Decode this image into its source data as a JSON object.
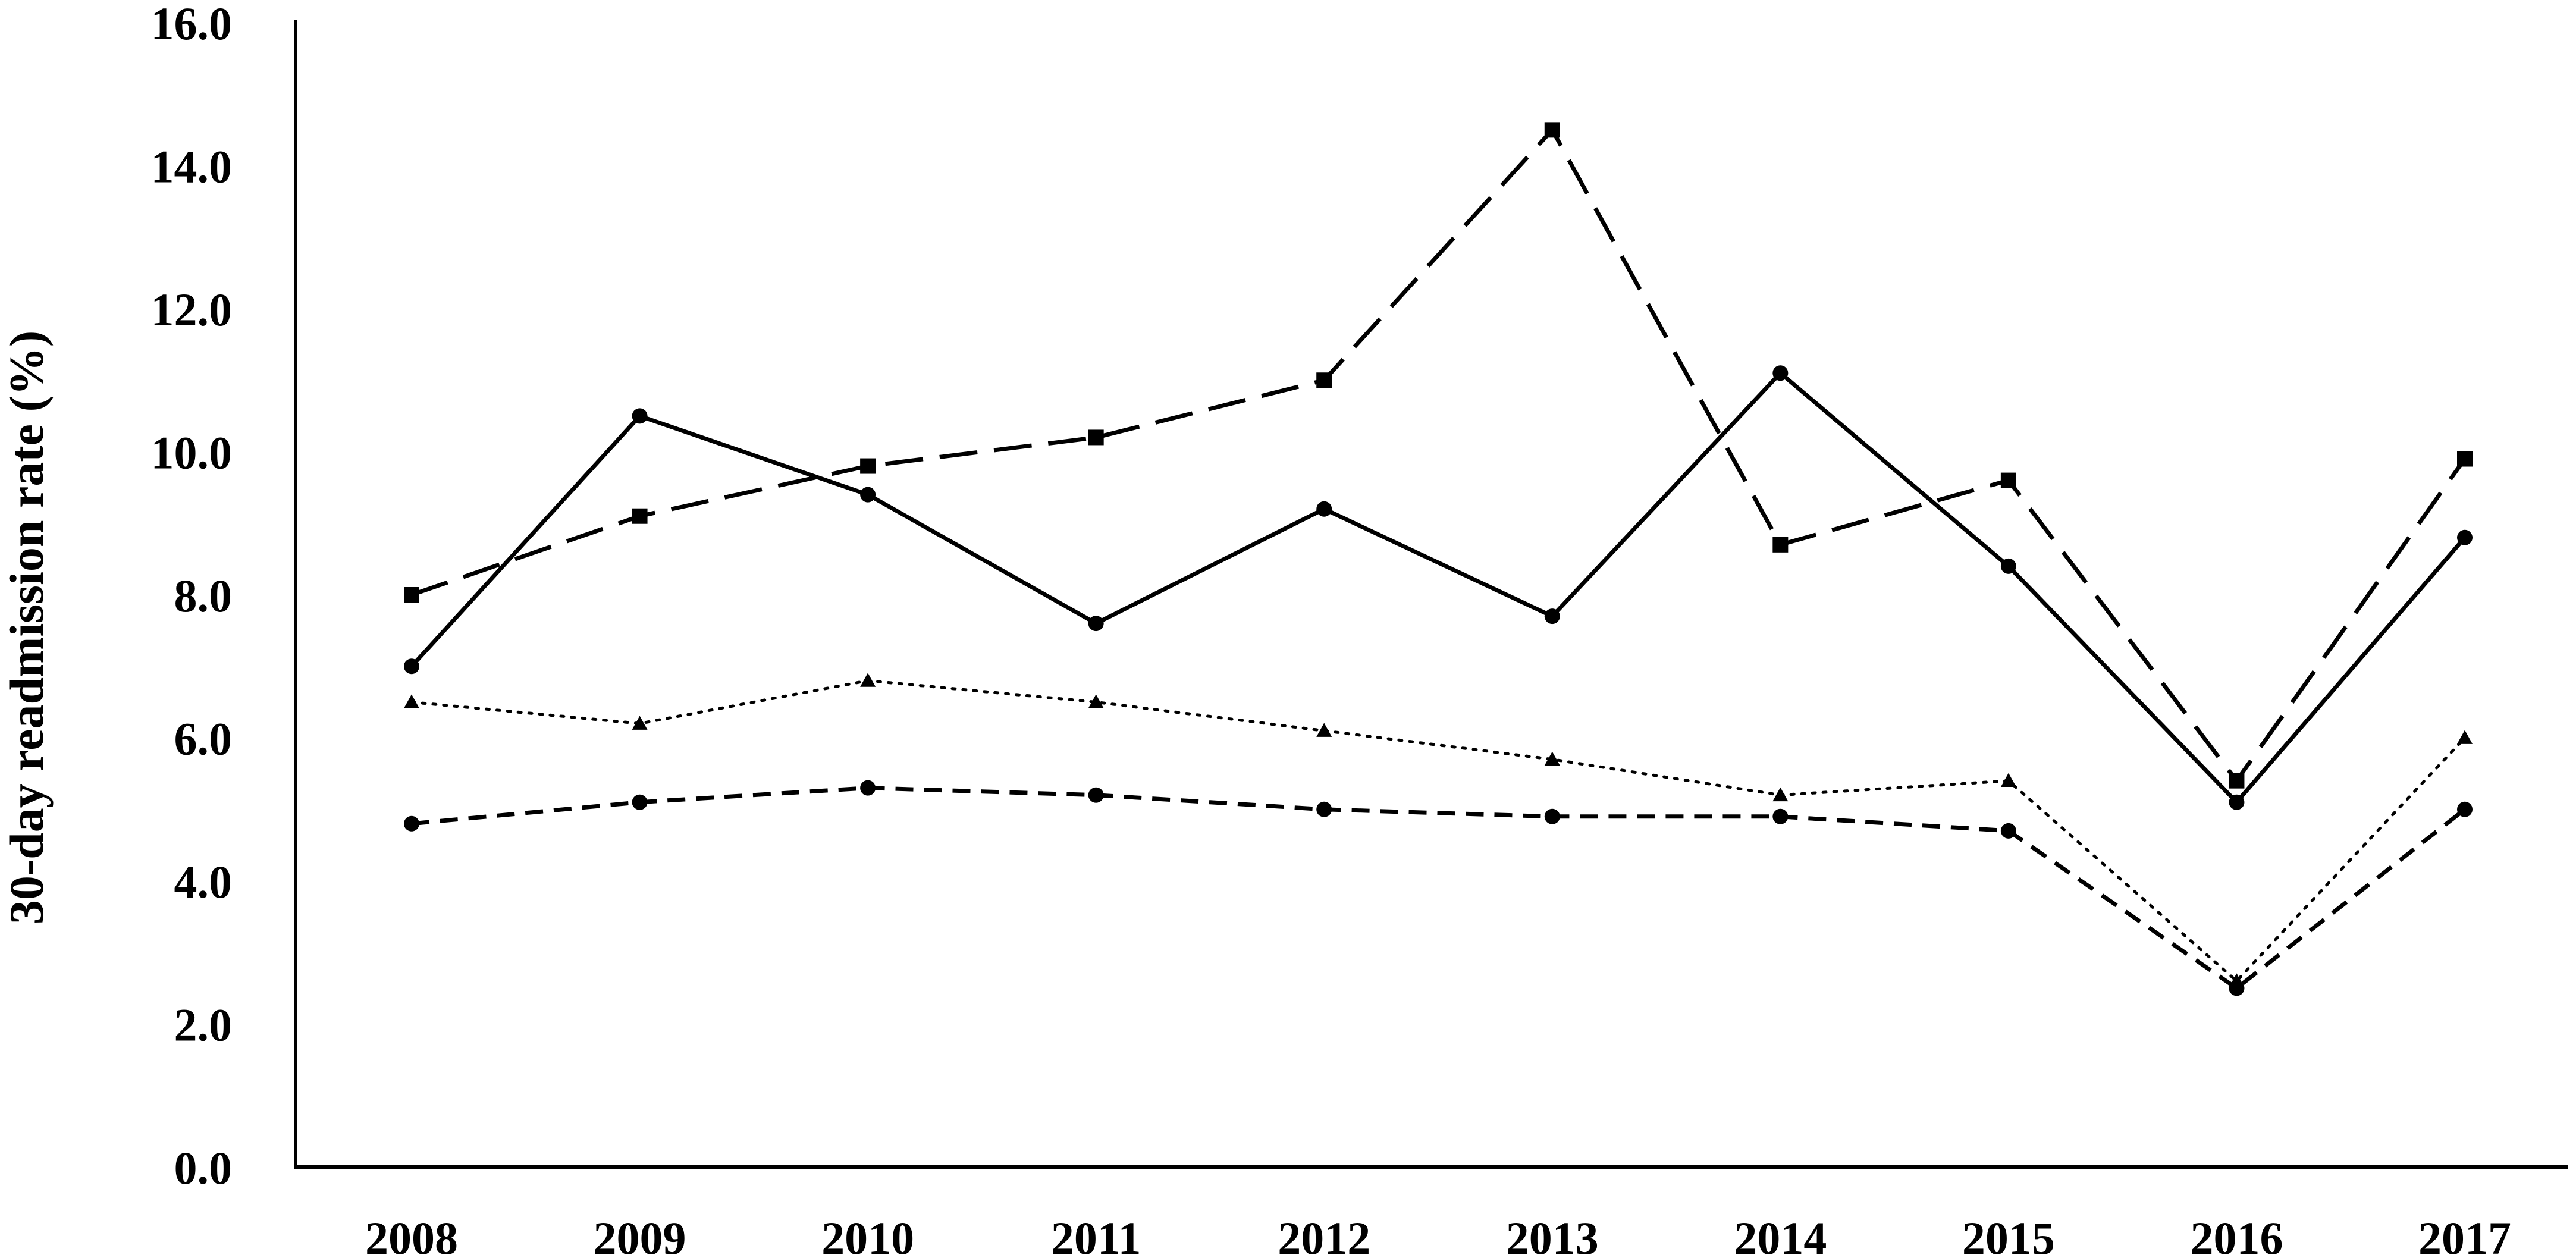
{
  "chart_data": {
    "type": "line",
    "title": "",
    "xlabel": "",
    "ylabel": "30-day readmission rate (%)",
    "categories": [
      "2008",
      "2009",
      "2010",
      "2011",
      "2012",
      "2013",
      "2014",
      "2015",
      "2016",
      "2017"
    ],
    "ylim": [
      0,
      16
    ],
    "yticks": [
      "0.0",
      "2.0",
      "4.0",
      "6.0",
      "8.0",
      "10.0",
      "12.0",
      "14.0",
      "16.0"
    ],
    "ytick_values": [
      0,
      2,
      4,
      6,
      8,
      10,
      12,
      14,
      16
    ],
    "grid": false,
    "legend": "none",
    "series": [
      {
        "values": [
          8.0,
          9.1,
          9.8,
          10.2,
          11.0,
          14.5,
          8.7,
          9.6,
          5.4,
          9.9
        ],
        "line_style": "long-dash",
        "marker": "square",
        "color": "#000000"
      },
      {
        "values": [
          7.0,
          10.5,
          9.4,
          7.6,
          9.2,
          7.7,
          11.1,
          8.4,
          5.1,
          8.8
        ],
        "line_style": "solid",
        "marker": "circle",
        "color": "#000000"
      },
      {
        "values": [
          6.5,
          6.2,
          6.8,
          6.5,
          6.1,
          5.7,
          5.2,
          5.4,
          2.6,
          6.0
        ],
        "line_style": "dotted",
        "marker": "triangle",
        "color": "#000000"
      },
      {
        "values": [
          4.8,
          5.1,
          5.3,
          5.2,
          5.0,
          4.9,
          4.9,
          4.7,
          2.5,
          5.0
        ],
        "line_style": "short-dash",
        "marker": "circle",
        "color": "#000000"
      }
    ]
  }
}
